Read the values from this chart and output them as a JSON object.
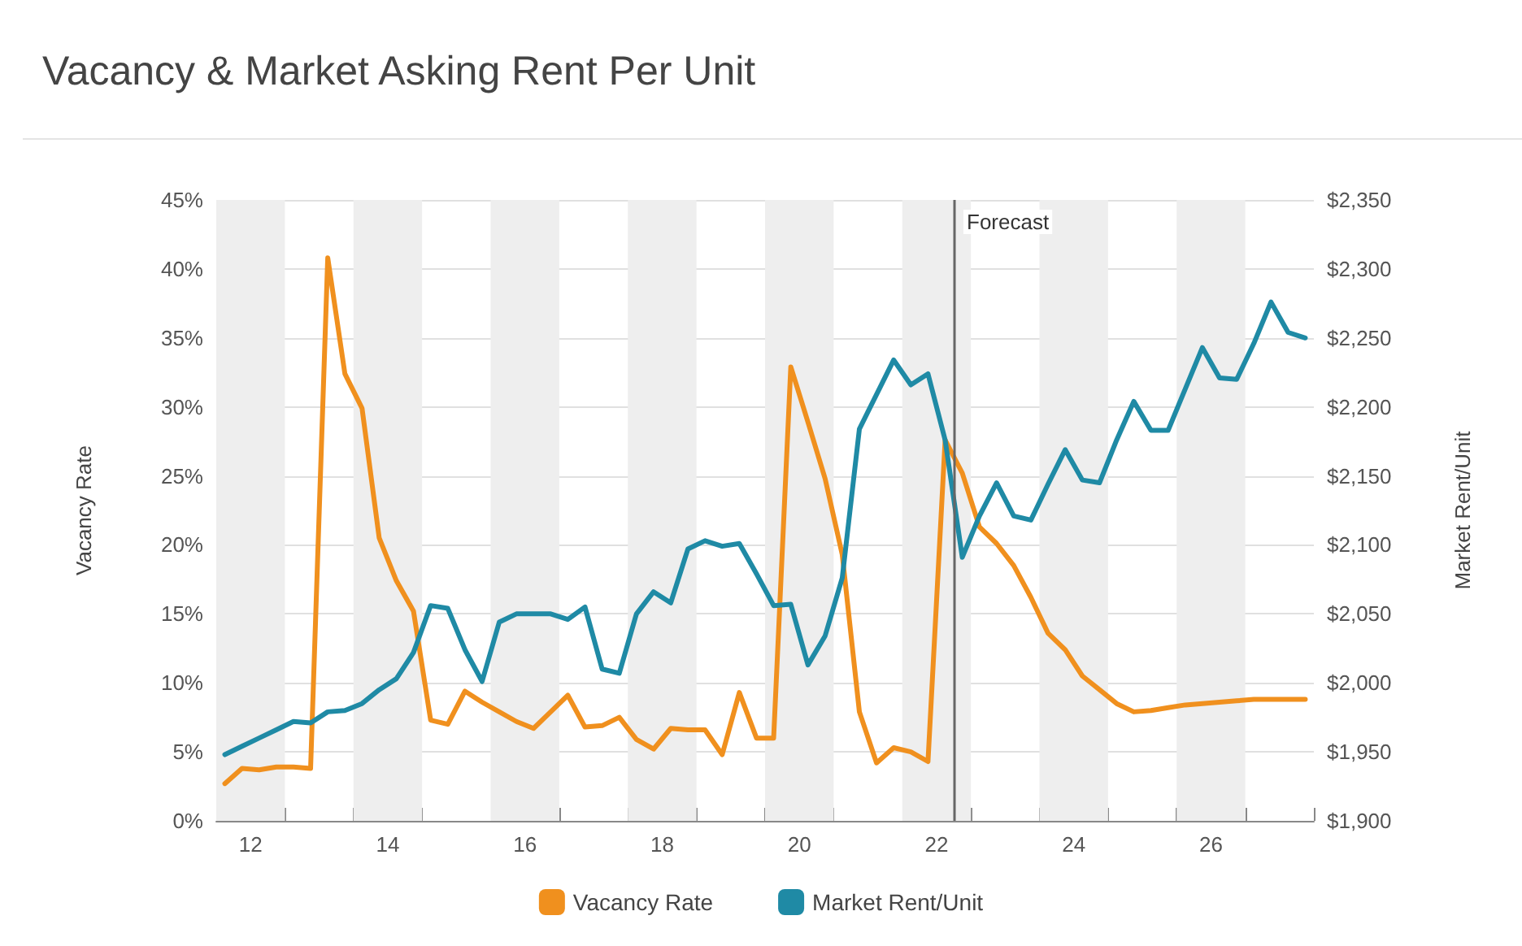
{
  "chart_data": {
    "type": "line",
    "title": "Vacancy & Market Asking Rent Per Unit",
    "ylabel": "Vacancy Rate",
    "y2label": "Market Rent/Unit",
    "x": [
      12.125,
      12.375,
      12.625,
      12.875,
      13.125,
      13.375,
      13.625,
      13.875,
      14.125,
      14.375,
      14.625,
      14.875,
      15.125,
      15.375,
      15.625,
      15.875,
      16.125,
      16.375,
      16.625,
      16.875,
      17.125,
      17.375,
      17.625,
      17.875,
      18.125,
      18.375,
      18.625,
      18.875,
      19.125,
      19.375,
      19.625,
      19.875,
      20.125,
      20.375,
      20.625,
      20.875,
      21.125,
      21.375,
      21.625,
      21.875,
      22.125,
      22.375,
      22.625,
      22.875,
      23.125,
      23.375,
      23.625,
      23.875,
      24.125,
      24.375,
      24.625,
      24.875,
      25.125,
      25.375,
      25.625,
      25.875,
      26.125,
      26.375,
      26.625,
      26.875,
      27.125,
      27.375,
      27.625,
      27.875
    ],
    "series": [
      {
        "name": "Vacancy Rate",
        "color": "#f0901e",
        "values": [
          2.7,
          3.8,
          3.7,
          3.9,
          3.9,
          3.8,
          40.8,
          32.4,
          29.9,
          20.5,
          17.4,
          15.2,
          7.3,
          7.0,
          9.4,
          8.6,
          7.9,
          7.2,
          6.7,
          7.9,
          9.1,
          6.8,
          6.9,
          7.5,
          5.9,
          5.2,
          6.7,
          6.6,
          6.6,
          4.8,
          9.3,
          6.0,
          6.0,
          32.9,
          28.9,
          24.8,
          19.3,
          7.9,
          4.2,
          5.3,
          5.0,
          4.3,
          27.6,
          25.2,
          21.3,
          20.1,
          18.5,
          16.2,
          13.6,
          12.4,
          10.5,
          9.5,
          8.5,
          7.9,
          8.0,
          8.2,
          8.4,
          8.5,
          8.6,
          8.7,
          8.8,
          8.8,
          8.8,
          8.8
        ]
      },
      {
        "name": "Market Rent/Unit",
        "color": "#1f8aa5",
        "axis": "y2",
        "values": [
          1948,
          1954,
          1960,
          1966,
          1972,
          1971,
          1979,
          1980,
          1985,
          1995,
          2003,
          2022,
          2056,
          2054,
          2024,
          2001,
          2044,
          2050,
          2050,
          2050,
          2046,
          2055,
          2010,
          2007,
          2050,
          2066,
          2058,
          2097,
          2103,
          2099,
          2101,
          2079,
          2056,
          2057,
          2013,
          2034,
          2076,
          2184,
          2209,
          2234,
          2216,
          2224,
          2176,
          2091,
          2121,
          2145,
          2121,
          2118,
          2144,
          2169,
          2147,
          2145,
          2176,
          2204,
          2183,
          2183,
          2213,
          2243,
          2221,
          2220,
          2246,
          2276,
          2254,
          2250
        ]
      }
    ],
    "xlim": [
      12,
      28
    ],
    "xticks": [
      {
        "value": 12,
        "label": null
      },
      {
        "value": 12.5,
        "label": "12"
      },
      {
        "value": 13,
        "label": null
      },
      {
        "value": 14,
        "label": null
      },
      {
        "value": 14.5,
        "label": "14"
      },
      {
        "value": 15,
        "label": null
      },
      {
        "value": 16,
        "label": null
      },
      {
        "value": 16.5,
        "label": "16"
      },
      {
        "value": 17,
        "label": null
      },
      {
        "value": 18,
        "label": null
      },
      {
        "value": 18.5,
        "label": "18"
      },
      {
        "value": 19,
        "label": null
      },
      {
        "value": 20,
        "label": null
      },
      {
        "value": 20.5,
        "label": "20"
      },
      {
        "value": 21,
        "label": null
      },
      {
        "value": 22,
        "label": null
      },
      {
        "value": 22.5,
        "label": "22"
      },
      {
        "value": 23,
        "label": null
      },
      {
        "value": 24,
        "label": null
      },
      {
        "value": 24.5,
        "label": "24"
      },
      {
        "value": 25,
        "label": null
      },
      {
        "value": 26,
        "label": null
      },
      {
        "value": 26.5,
        "label": "26"
      },
      {
        "value": 27,
        "label": null
      },
      {
        "value": 28,
        "label": null
      }
    ],
    "ylim": [
      0,
      45
    ],
    "yticks": [
      {
        "value": 0,
        "label": "0%"
      },
      {
        "value": 5,
        "label": "5%"
      },
      {
        "value": 10,
        "label": "10%"
      },
      {
        "value": 15,
        "label": "15%"
      },
      {
        "value": 20,
        "label": "20%"
      },
      {
        "value": 25,
        "label": "25%"
      },
      {
        "value": 30,
        "label": "30%"
      },
      {
        "value": 35,
        "label": "35%"
      },
      {
        "value": 40,
        "label": "40%"
      },
      {
        "value": 45,
        "label": "45%"
      }
    ],
    "y2lim": [
      1900,
      2350
    ],
    "y2ticks": [
      {
        "value": 1900,
        "label": "$1,900"
      },
      {
        "value": 1950,
        "label": "$1,950"
      },
      {
        "value": 2000,
        "label": "$2,000"
      },
      {
        "value": 2050,
        "label": "$2,050"
      },
      {
        "value": 2100,
        "label": "$2,100"
      },
      {
        "value": 2150,
        "label": "$2,150"
      },
      {
        "value": 2200,
        "label": "$2,200"
      },
      {
        "value": 2250,
        "label": "$2,250"
      },
      {
        "value": 2300,
        "label": "$2,300"
      },
      {
        "value": 2350,
        "label": "$2,350"
      }
    ],
    "bands": [
      {
        "axis": "x",
        "from": 12,
        "to": 13,
        "color": "#eeeeee"
      },
      {
        "axis": "x",
        "from": 14,
        "to": 15,
        "color": "#eeeeee"
      },
      {
        "axis": "x",
        "from": 16,
        "to": 17,
        "color": "#eeeeee"
      },
      {
        "axis": "x",
        "from": 18,
        "to": 19,
        "color": "#eeeeee"
      },
      {
        "axis": "x",
        "from": 20,
        "to": 21,
        "color": "#eeeeee"
      },
      {
        "axis": "x",
        "from": 22,
        "to": 23,
        "color": "#eeeeee"
      },
      {
        "axis": "x",
        "from": 24,
        "to": 25,
        "color": "#eeeeee"
      },
      {
        "axis": "x",
        "from": 26,
        "to": 27,
        "color": "#eeeeee"
      }
    ],
    "ref_lines": [
      {
        "axis": "x",
        "value": 22.75,
        "label": "Forecast",
        "color": "#666666",
        "line_style": "solid"
      }
    ],
    "grid": "y",
    "legend": "bottom",
    "marker": "none",
    "line_style": "solid"
  }
}
